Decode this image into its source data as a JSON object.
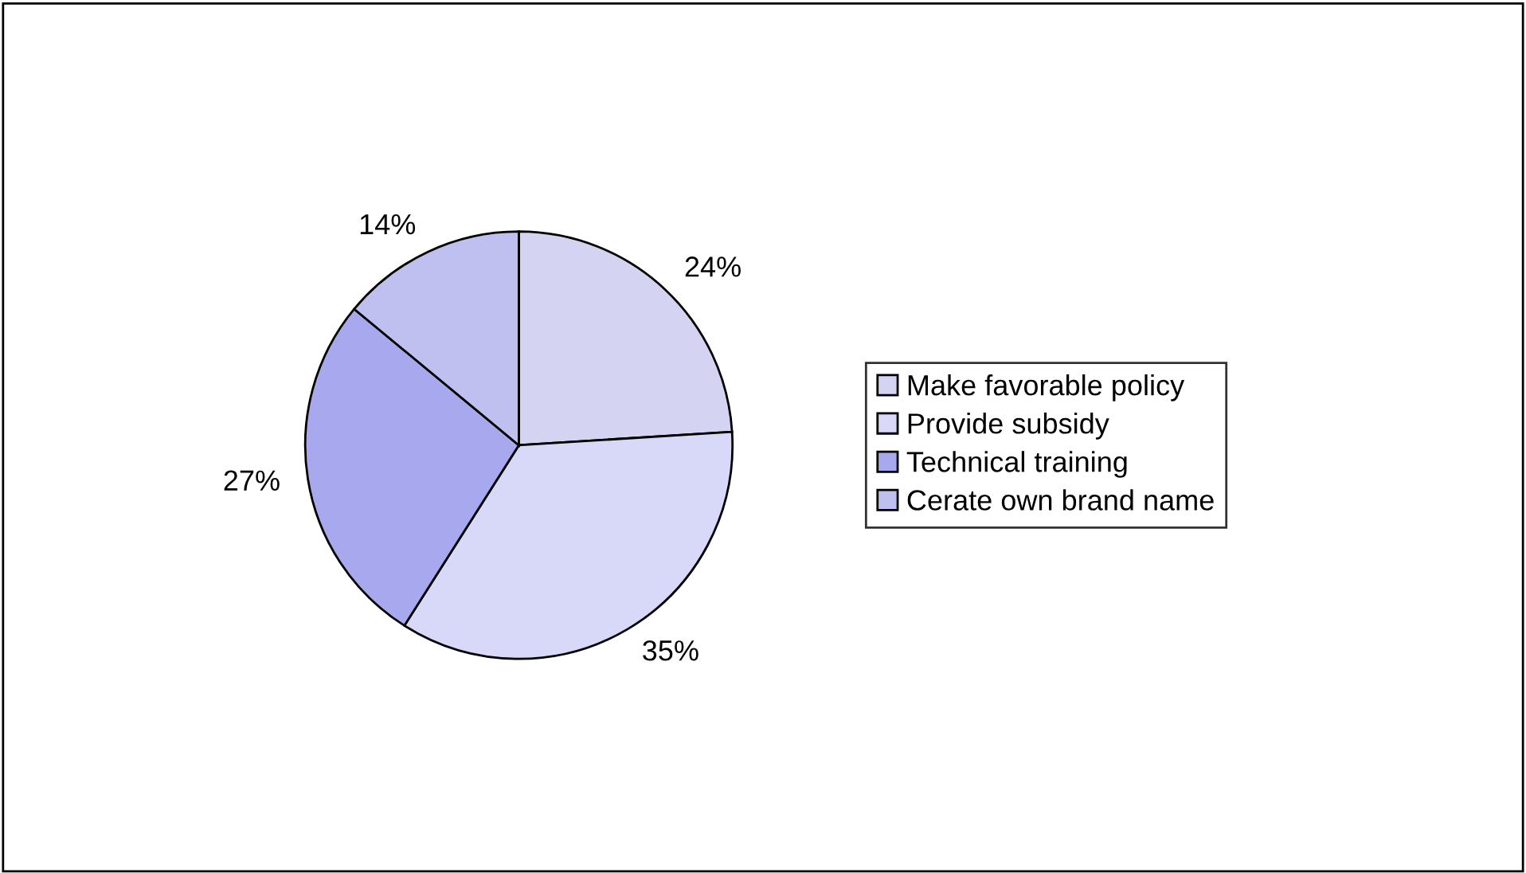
{
  "chart_data": {
    "type": "pie",
    "categories": [
      "Make favorable policy",
      "Provide subsidy",
      "Technical training",
      "Cerate own brand name"
    ],
    "values": [
      24,
      35,
      27,
      14
    ],
    "value_labels": [
      "24%",
      "35%",
      "27%",
      "14%"
    ],
    "colors": [
      "#d4d4f2",
      "#d8d8f8",
      "#a8a8ee",
      "#c0c0f0"
    ],
    "legend": "right"
  }
}
